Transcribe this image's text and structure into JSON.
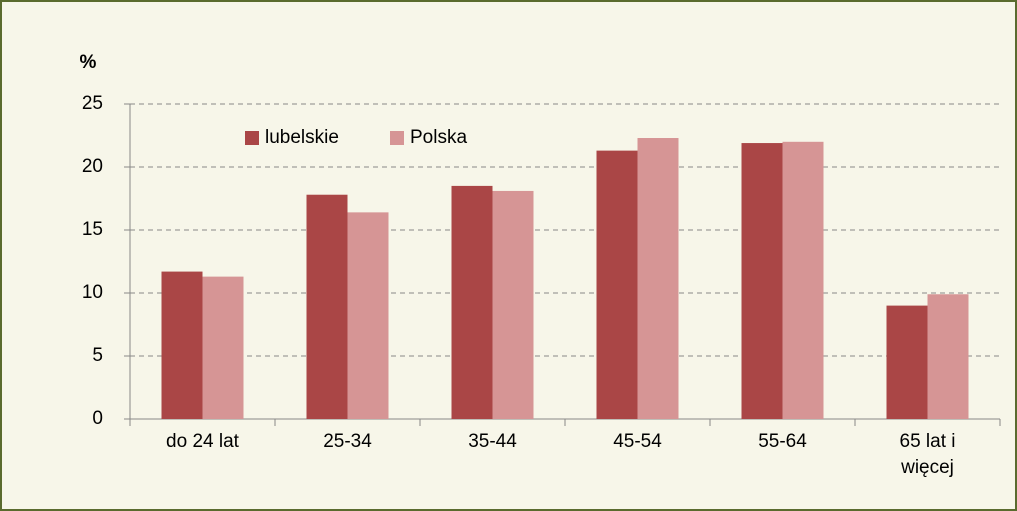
{
  "chart_data": {
    "type": "bar",
    "y_label": "%",
    "categories": [
      "do 24 lat",
      "25-34",
      "35-44",
      "45-54",
      "55-64",
      "65 lat i więcej"
    ],
    "series": [
      {
        "name": "lubelskie",
        "color": "#aa4646",
        "values": [
          11.7,
          17.8,
          18.5,
          21.3,
          21.9,
          9.0
        ]
      },
      {
        "name": "Polska",
        "color": "#d69595",
        "values": [
          11.3,
          16.4,
          18.1,
          22.3,
          22.0,
          9.9
        ]
      }
    ],
    "ylim": [
      0,
      25
    ],
    "yticks": [
      0,
      5,
      10,
      15,
      20,
      25
    ],
    "grid": true,
    "legend": "top-left"
  }
}
